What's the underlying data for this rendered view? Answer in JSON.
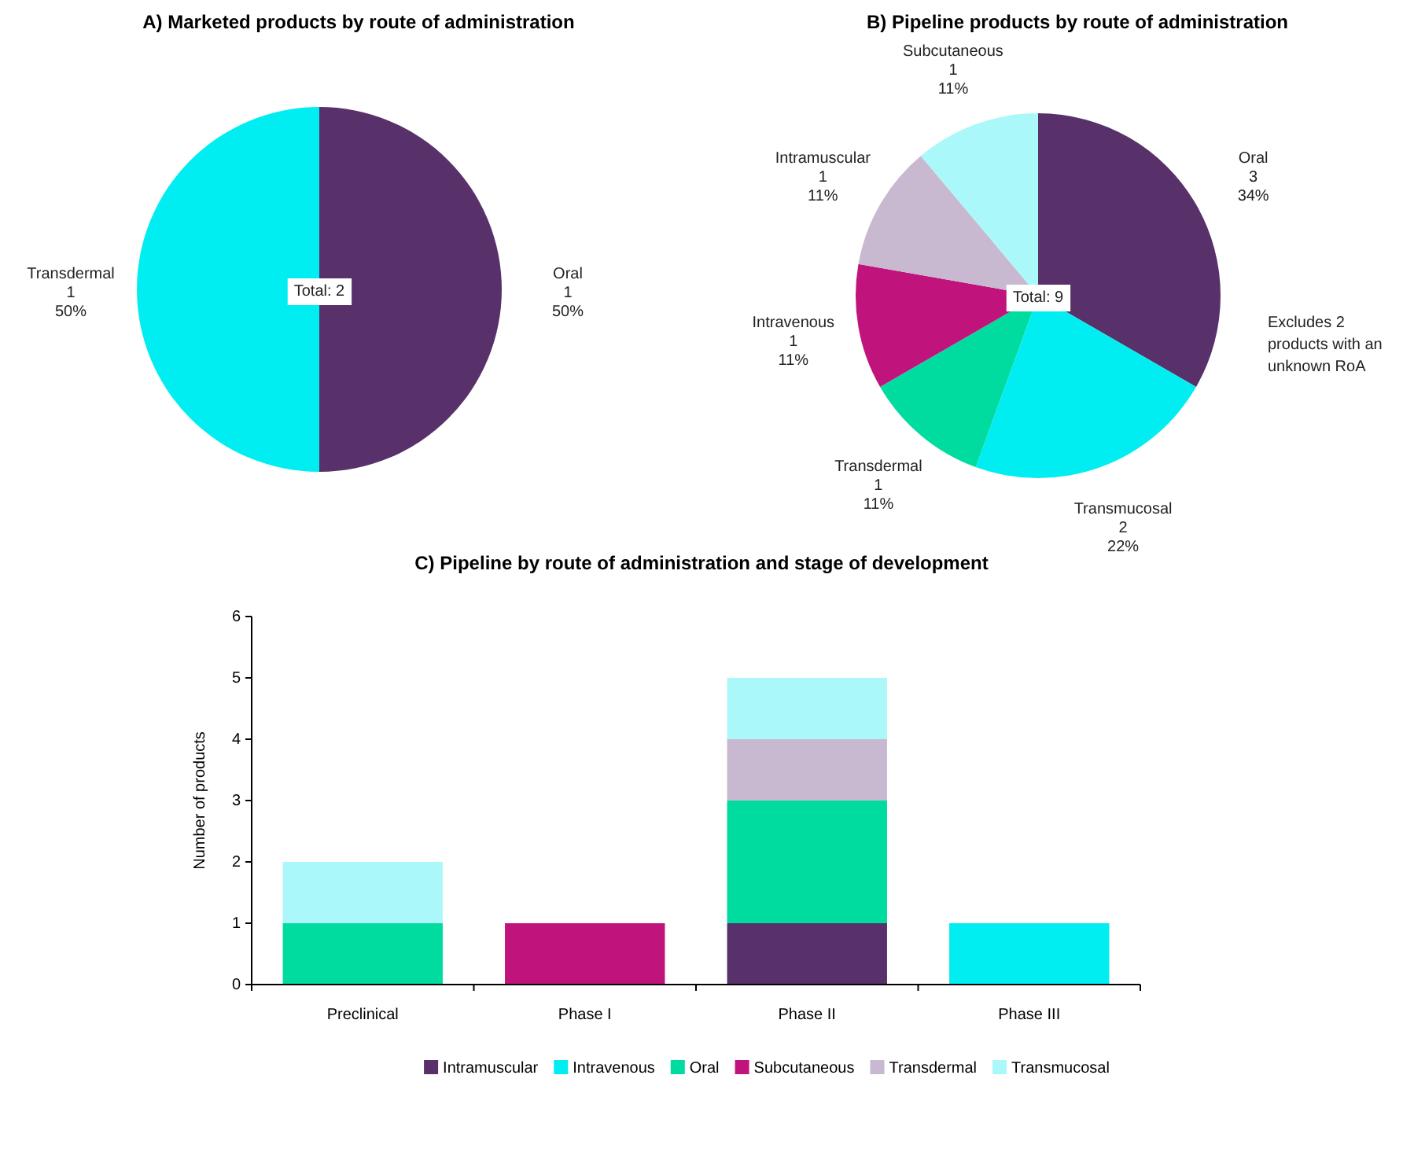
{
  "chart_data": [
    {
      "type": "pie",
      "title": "A) Marketed products by route of administration",
      "categories": [
        "Oral",
        "Transdermal"
      ],
      "values": [
        1,
        1
      ],
      "value_labels": [
        "1\n50%",
        "1\n50%"
      ],
      "colors": [
        "#58316b",
        "#00eef2"
      ],
      "annotations": [
        "Total: 2"
      ]
    },
    {
      "type": "pie",
      "title": "B) Pipeline products by route of administration",
      "categories": [
        "Oral",
        "Transmucosal",
        "Transdermal",
        "Intravenous",
        "Intramuscular",
        "Subcutaneous"
      ],
      "values": [
        3,
        2,
        1,
        1,
        1,
        1
      ],
      "value_labels": [
        "3\n34%",
        "2\n22%",
        "1\n11%",
        "1\n11%",
        "1\n11%",
        "1\n11%"
      ],
      "colors": [
        "#58316b",
        "#00eef2",
        "#00dc9f",
        "#c0137c",
        "#c8b9d0",
        "#abf8fa"
      ],
      "annotations": [
        "Total: 9",
        "Excludes 2\nproducts with an\nunknown RoA"
      ]
    },
    {
      "type": "bar",
      "stacked": true,
      "title": "C) Pipeline by route of administration and stage of development",
      "ylabel": "Number of products",
      "categories": [
        "Preclinical",
        "Phase I",
        "Phase II",
        "Phase III"
      ],
      "ylim": [
        0,
        6
      ],
      "yticks": [
        0,
        1,
        2,
        3,
        4,
        5,
        6
      ],
      "legend": "bottom",
      "series": [
        {
          "name": "Intramuscular",
          "color": "#58316b",
          "values": [
            0,
            0,
            1,
            0
          ]
        },
        {
          "name": "Intravenous",
          "color": "#00eef2",
          "values": [
            0,
            0,
            0,
            1
          ]
        },
        {
          "name": "Oral",
          "color": "#00dc9f",
          "values": [
            1,
            0,
            2,
            0
          ]
        },
        {
          "name": "Subcutaneous",
          "color": "#c0137c",
          "values": [
            0,
            1,
            0,
            0
          ]
        },
        {
          "name": "Transdermal",
          "color": "#c8b9d0",
          "values": [
            0,
            0,
            1,
            0
          ]
        },
        {
          "name": "Transmucosal",
          "color": "#abf8fa",
          "values": [
            1,
            0,
            1,
            0
          ]
        }
      ]
    }
  ]
}
